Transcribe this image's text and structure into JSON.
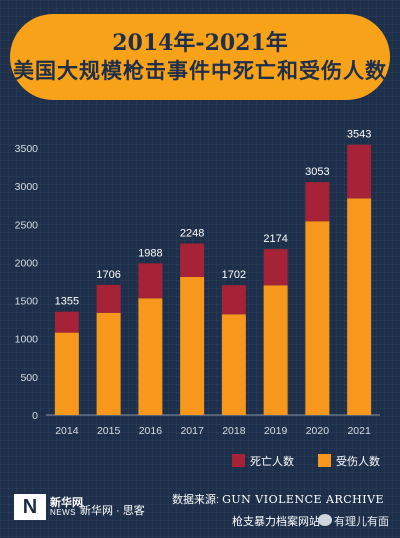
{
  "title": {
    "line1": "2014年-2021年",
    "line2": "美国大规模枪击事件中死亡和受伤人数"
  },
  "chart_data": {
    "type": "bar",
    "stacked": true,
    "categories": [
      "2014",
      "2015",
      "2016",
      "2017",
      "2018",
      "2019",
      "2020",
      "2021"
    ],
    "series": [
      {
        "name": "受伤人数",
        "color": "#f7981d",
        "values": [
          1080,
          1340,
          1530,
          1810,
          1320,
          1700,
          2540,
          2840
        ]
      },
      {
        "name": "死亡人数",
        "color": "#a52237",
        "values": [
          275,
          366,
          458,
          438,
          382,
          474,
          513,
          703
        ]
      }
    ],
    "totals": [
      1355,
      1706,
      1988,
      2248,
      1702,
      2174,
      3053,
      3543
    ],
    "ylim": [
      0,
      3500
    ],
    "yticks": [
      0,
      500,
      1000,
      1500,
      2000,
      2500,
      3000,
      3500
    ],
    "grid": false,
    "legend_position": "bottom-right"
  },
  "legend": {
    "deaths": "死亡人数",
    "injured": "受伤人数"
  },
  "footer": {
    "logo_mark": "N",
    "logo_text": "新华网",
    "logo_sub": "NEWS",
    "brand": "新华网 · 思客",
    "source_label": "数据来源:",
    "source_org": "GUN VIOLENCE ARCHIVE",
    "source_cn": "枪支暴力档案网站",
    "watermark": "有理儿有面"
  }
}
